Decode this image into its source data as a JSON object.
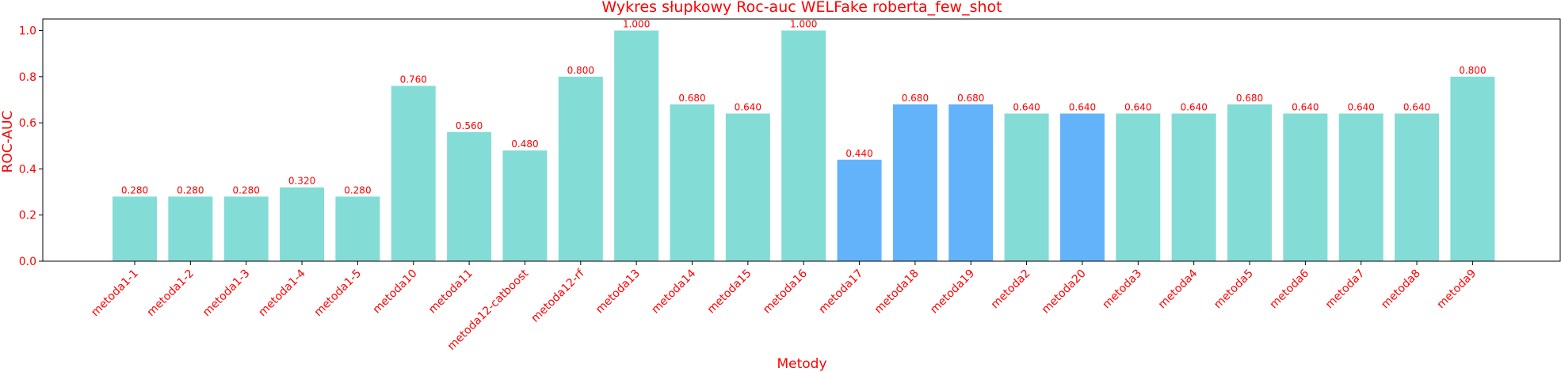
{
  "chart_data": {
    "type": "bar",
    "title": "Wykres słupkowy Roc-auc WELFake roberta_few_shot",
    "xlabel": "Metody",
    "ylabel": "ROC-AUC",
    "ylim": [
      0,
      1.05
    ],
    "yticks": [
      "0.0",
      "0.2",
      "0.4",
      "0.6",
      "0.8",
      "1.0"
    ],
    "grid": false,
    "categories": [
      "metoda1-1",
      "metoda1-2",
      "metoda1-3",
      "metoda1-4",
      "metoda1-5",
      "metoda10",
      "metoda11",
      "metoda12-catboost",
      "metoda12-rf",
      "metoda13",
      "metoda14",
      "metoda15",
      "metoda16",
      "metoda17",
      "metoda18",
      "metoda19",
      "metoda2",
      "metoda20",
      "metoda3",
      "metoda4",
      "metoda5",
      "metoda6",
      "metoda7",
      "metoda8",
      "metoda9"
    ],
    "values": [
      0.28,
      0.28,
      0.28,
      0.32,
      0.28,
      0.76,
      0.56,
      0.48,
      0.8,
      1.0,
      0.68,
      0.64,
      1.0,
      0.44,
      0.68,
      0.68,
      0.64,
      0.64,
      0.64,
      0.64,
      0.68,
      0.64,
      0.64,
      0.64,
      0.8
    ],
    "value_labels": [
      "0.280",
      "0.280",
      "0.280",
      "0.320",
      "0.280",
      "0.760",
      "0.560",
      "0.480",
      "0.800",
      "1.000",
      "0.680",
      "0.640",
      "1.000",
      "0.440",
      "0.680",
      "0.680",
      "0.640",
      "0.640",
      "0.640",
      "0.640",
      "0.680",
      "0.640",
      "0.640",
      "0.640",
      "0.800"
    ],
    "bar_colors": [
      "#84dcd6",
      "#84dcd6",
      "#84dcd6",
      "#84dcd6",
      "#84dcd6",
      "#84dcd6",
      "#84dcd6",
      "#84dcd6",
      "#84dcd6",
      "#84dcd6",
      "#84dcd6",
      "#84dcd6",
      "#84dcd6",
      "#63b3fb",
      "#63b3fb",
      "#63b3fb",
      "#84dcd6",
      "#63b3fb",
      "#84dcd6",
      "#84dcd6",
      "#84dcd6",
      "#84dcd6",
      "#84dcd6",
      "#84dcd6",
      "#84dcd6"
    ],
    "text_color": "#ff0000"
  }
}
